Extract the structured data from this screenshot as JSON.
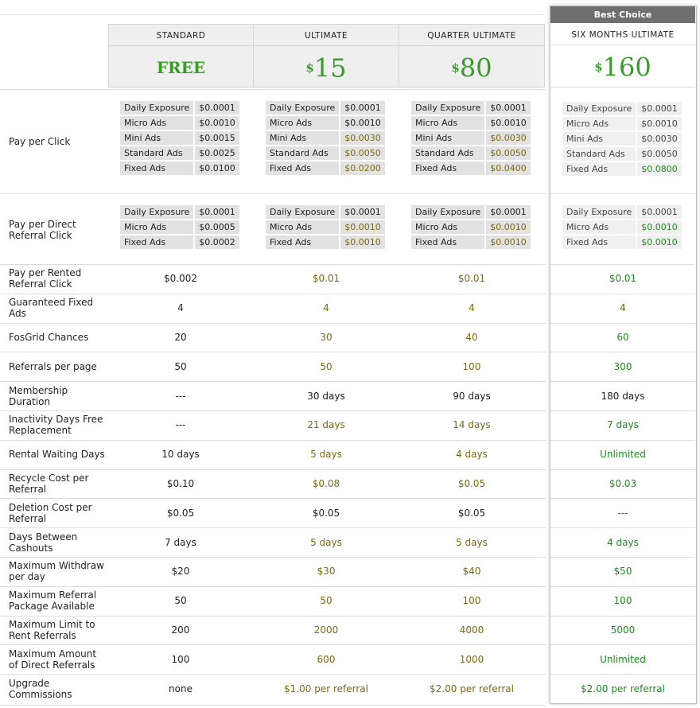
{
  "banner": "Best Choice",
  "plans": [
    {
      "name": "STANDARD",
      "price_text": "FREE",
      "currency": "",
      "amount": ""
    },
    {
      "name": "ULTIMATE",
      "price_text": "",
      "currency": "$",
      "amount": "15"
    },
    {
      "name": "QUARTER ULTIMATE",
      "price_text": "",
      "currency": "$",
      "amount": "80"
    },
    {
      "name": "SIX MONTHS ULTIMATE",
      "price_text": "",
      "currency": "$",
      "amount": "160"
    }
  ],
  "ppc": {
    "label": "Pay per Click",
    "keys": [
      "Daily Exposure",
      "Micro Ads",
      "Mini Ads",
      "Standard Ads",
      "Fixed Ads"
    ],
    "values": [
      [
        "$0.0001",
        "$0.0010",
        "$0.0015",
        "$0.0025",
        "$0.0100"
      ],
      [
        "$0.0001",
        "$0.0010",
        "$0.0030",
        "$0.0050",
        "$0.0200"
      ],
      [
        "$0.0001",
        "$0.0010",
        "$0.0030",
        "$0.0050",
        "$0.0400"
      ],
      [
        "$0.0001",
        "$0.0010",
        "$0.0030",
        "$0.0050",
        "$0.0800"
      ]
    ]
  },
  "pdrc": {
    "label": "Pay per Direct Referral Click",
    "keys": [
      "Daily Exposure",
      "Micro Ads",
      "Fixed Ads"
    ],
    "values": [
      [
        "$0.0001",
        "$0.0005",
        "$0.0002"
      ],
      [
        "$0.0001",
        "$0.0010",
        "$0.0010"
      ],
      [
        "$0.0001",
        "$0.0010",
        "$0.0010"
      ],
      [
        "$0.0001",
        "$0.0010",
        "$0.0010"
      ]
    ]
  },
  "rows": [
    {
      "label": "Pay per Rented Referral Click",
      "values": [
        "$0.002",
        "$0.01",
        "$0.01",
        "$0.01"
      ]
    },
    {
      "label": "Guaranteed Fixed Ads",
      "values": [
        "4",
        "4",
        "4",
        "4"
      ]
    },
    {
      "label": "FosGrid Chances",
      "values": [
        "20",
        "30",
        "40",
        "60"
      ]
    },
    {
      "label": "Referrals per page",
      "values": [
        "50",
        "50",
        "100",
        "300"
      ]
    },
    {
      "label": "Membership Duration",
      "values": [
        "---",
        "30 days",
        "90 days",
        "180 days"
      ]
    },
    {
      "label": "Inactivity Days Free Replacement",
      "values": [
        "---",
        "21 days",
        "14 days",
        "7 days"
      ]
    },
    {
      "label": "Rental Waiting Days",
      "values": [
        "10 days",
        "5 days",
        "4 days",
        "Unlimited"
      ]
    },
    {
      "label": "Recycle Cost per Referral",
      "values": [
        "$0.10",
        "$0.08",
        "$0.05",
        "$0.03"
      ]
    },
    {
      "label": "Deletion Cost per Referral",
      "values": [
        "$0.05",
        "$0.05",
        "$0.05",
        "---"
      ]
    },
    {
      "label": "Days Between Cashouts",
      "values": [
        "7 days",
        "5 days",
        "5 days",
        "4 days"
      ]
    },
    {
      "label": "Maximum Withdraw per day",
      "values": [
        "$20",
        "$30",
        "$40",
        "$50"
      ]
    },
    {
      "label": "Maximum Referral Package Available",
      "values": [
        "50",
        "50",
        "100",
        "100"
      ]
    },
    {
      "label": "Maximum Limit to Rent Referrals",
      "values": [
        "200",
        "2000",
        "4000",
        "5000"
      ]
    },
    {
      "label": "Maximum Amount of Direct Referrals",
      "values": [
        "100",
        "600",
        "1000",
        "Unlimited"
      ]
    },
    {
      "label": "Upgrade Commissions",
      "values": [
        "none",
        "$1.00 per referral",
        "$2.00 per referral",
        "$2.00 per referral"
      ]
    }
  ]
}
